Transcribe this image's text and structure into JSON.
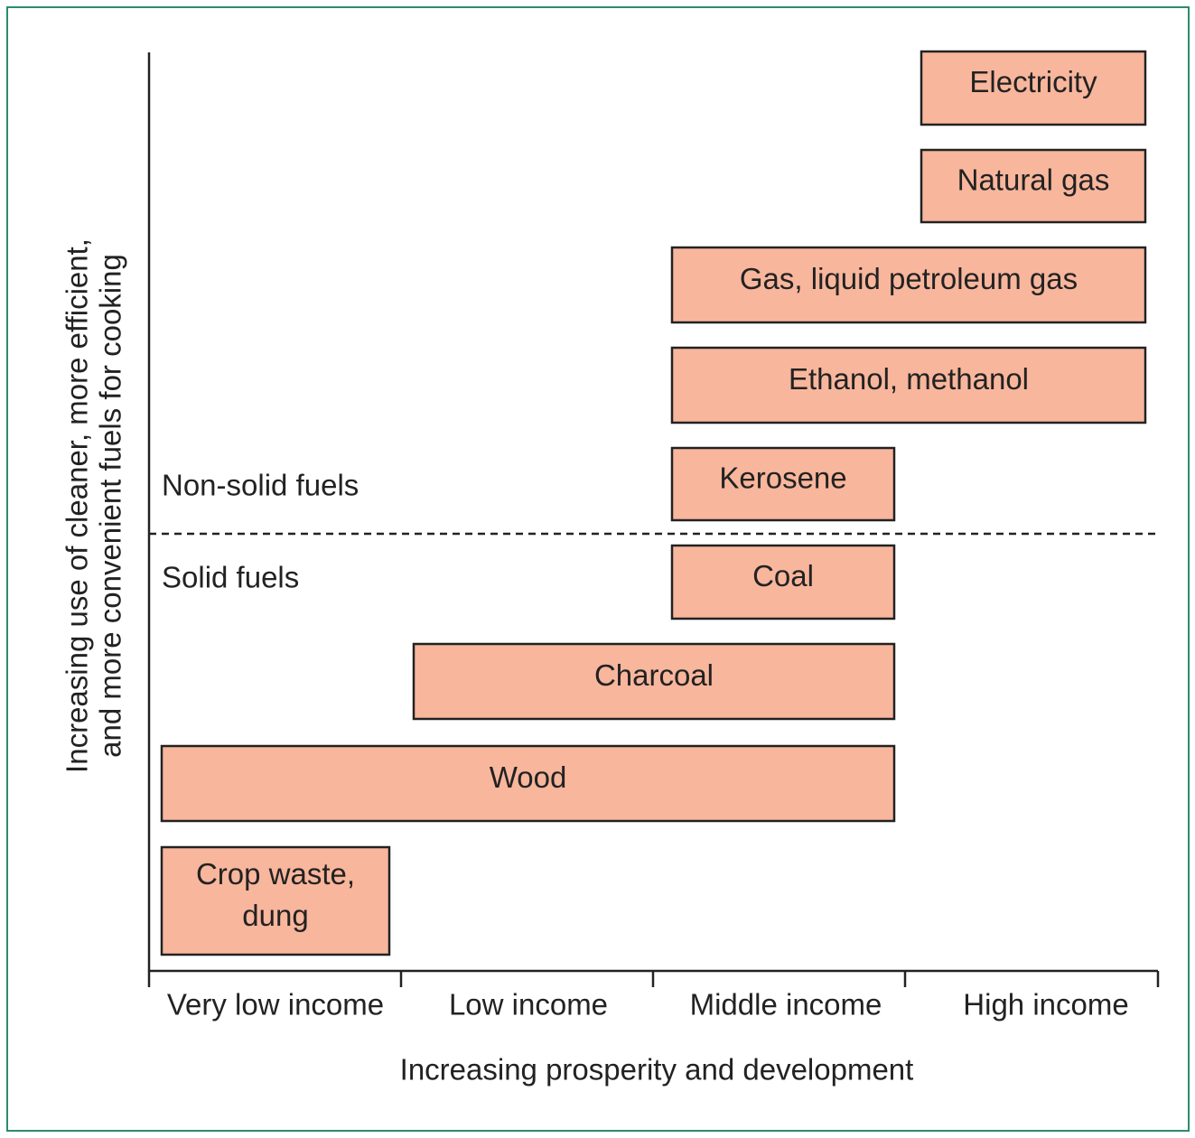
{
  "y_axis": {
    "title_lines": [
      "Increasing use of cleaner, more efficient,",
      "and more convenient fuels for cooking"
    ]
  },
  "x_axis": {
    "title": "Increasing prosperity and development",
    "categories": [
      "Very low income",
      "Low income",
      "Middle income",
      "High income"
    ]
  },
  "regions": {
    "upper": "Non-solid fuels",
    "lower": "Solid fuels"
  },
  "fuels": [
    {
      "label": [
        "Electricity"
      ]
    },
    {
      "label": [
        "Natural gas"
      ]
    },
    {
      "label": [
        "Gas, liquid petroleum gas"
      ]
    },
    {
      "label": [
        "Ethanol, methanol"
      ]
    },
    {
      "label": [
        "Kerosene"
      ]
    },
    {
      "label": [
        "Coal"
      ]
    },
    {
      "label": [
        "Charcoal"
      ]
    },
    {
      "label": [
        "Wood"
      ]
    },
    {
      "label": [
        "Crop waste,",
        "dung"
      ]
    }
  ]
}
